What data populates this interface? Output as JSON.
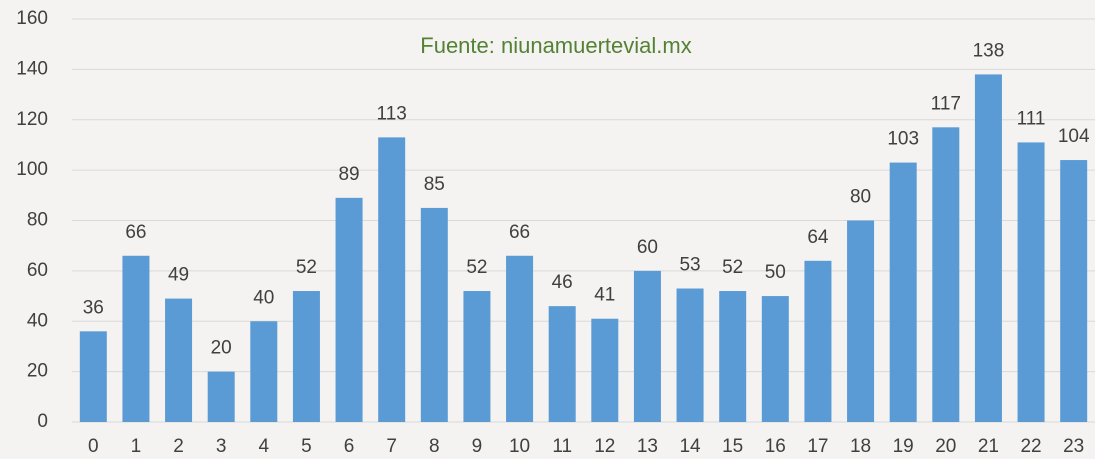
{
  "chart_data": {
    "type": "bar",
    "annotation": "Fuente: niunamuertevial.mx",
    "categories": [
      "0",
      "1",
      "2",
      "3",
      "4",
      "5",
      "6",
      "7",
      "8",
      "9",
      "10",
      "11",
      "12",
      "13",
      "14",
      "15",
      "16",
      "17",
      "18",
      "19",
      "20",
      "21",
      "22",
      "23"
    ],
    "values": [
      36,
      66,
      49,
      20,
      40,
      52,
      89,
      113,
      85,
      52,
      66,
      46,
      41,
      60,
      53,
      52,
      50,
      64,
      80,
      103,
      117,
      138,
      111,
      104
    ],
    "color": "#5b9bd5",
    "ylim": [
      0,
      160
    ],
    "yticks": [
      0,
      20,
      40,
      60,
      80,
      100,
      120,
      140,
      160
    ],
    "grid": true
  }
}
